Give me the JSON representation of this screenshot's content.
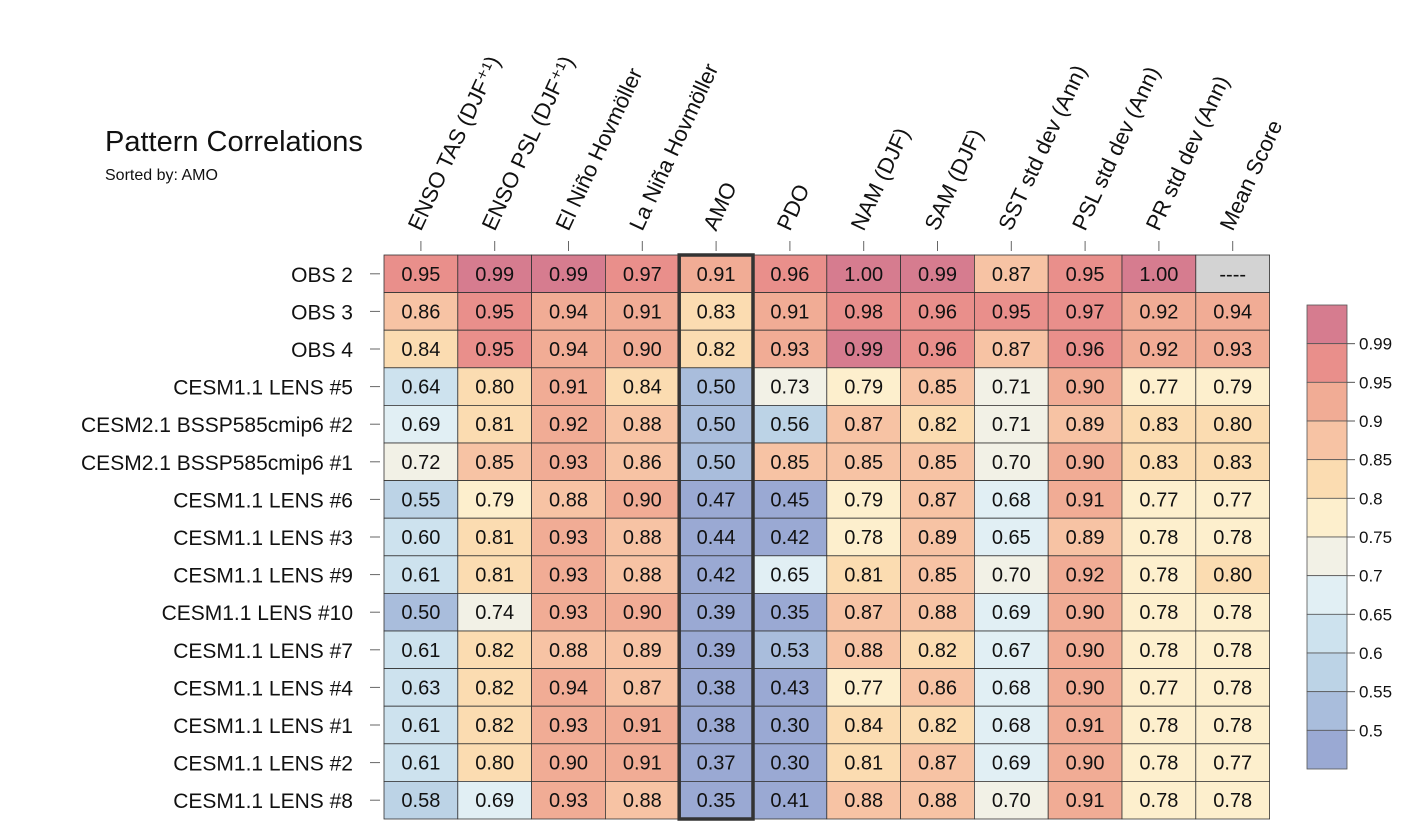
{
  "title": "Pattern Correlations",
  "subtitle": "Sorted by: AMO",
  "chart_data": {
    "type": "heatmap",
    "columns": [
      "ENSO TAS (DJF⁺¹)",
      "ENSO PSL (DJF⁺¹)",
      "El Niño Hovmöller",
      "La Niña Hovmöller",
      "AMO",
      "PDO",
      "NAM (DJF)",
      "SAM (DJF)",
      "SST std dev (Ann)",
      "PSL std dev (Ann)",
      "PR std dev (Ann)",
      "Mean Score"
    ],
    "highlighted_column": "AMO",
    "rows": [
      {
        "name": "OBS 2",
        "values": [
          "0.95",
          "0.99",
          "0.99",
          "0.97",
          "0.91",
          "0.96",
          "1.00",
          "0.99",
          "0.87",
          "0.95",
          "1.00",
          "----"
        ]
      },
      {
        "name": "OBS 3",
        "values": [
          "0.86",
          "0.95",
          "0.94",
          "0.91",
          "0.83",
          "0.91",
          "0.98",
          "0.96",
          "0.95",
          "0.97",
          "0.92",
          "0.94"
        ]
      },
      {
        "name": "OBS 4",
        "values": [
          "0.84",
          "0.95",
          "0.94",
          "0.90",
          "0.82",
          "0.93",
          "0.99",
          "0.96",
          "0.87",
          "0.96",
          "0.92",
          "0.93"
        ]
      },
      {
        "name": "CESM1.1 LENS #5",
        "values": [
          "0.64",
          "0.80",
          "0.91",
          "0.84",
          "0.50",
          "0.73",
          "0.79",
          "0.85",
          "0.71",
          "0.90",
          "0.77",
          "0.79"
        ]
      },
      {
        "name": "CESM2.1 BSSP585cmip6 #2",
        "values": [
          "0.69",
          "0.81",
          "0.92",
          "0.88",
          "0.50",
          "0.56",
          "0.87",
          "0.82",
          "0.71",
          "0.89",
          "0.83",
          "0.80"
        ]
      },
      {
        "name": "CESM2.1 BSSP585cmip6 #1",
        "values": [
          "0.72",
          "0.85",
          "0.93",
          "0.86",
          "0.50",
          "0.85",
          "0.85",
          "0.85",
          "0.70",
          "0.90",
          "0.83",
          "0.83"
        ]
      },
      {
        "name": "CESM1.1 LENS #6",
        "values": [
          "0.55",
          "0.79",
          "0.88",
          "0.90",
          "0.47",
          "0.45",
          "0.79",
          "0.87",
          "0.68",
          "0.91",
          "0.77",
          "0.77"
        ]
      },
      {
        "name": "CESM1.1 LENS #3",
        "values": [
          "0.60",
          "0.81",
          "0.93",
          "0.88",
          "0.44",
          "0.42",
          "0.78",
          "0.89",
          "0.65",
          "0.89",
          "0.78",
          "0.78"
        ]
      },
      {
        "name": "CESM1.1 LENS #9",
        "values": [
          "0.61",
          "0.81",
          "0.93",
          "0.88",
          "0.42",
          "0.65",
          "0.81",
          "0.85",
          "0.70",
          "0.92",
          "0.78",
          "0.80"
        ]
      },
      {
        "name": "CESM1.1 LENS #10",
        "values": [
          "0.50",
          "0.74",
          "0.93",
          "0.90",
          "0.39",
          "0.35",
          "0.87",
          "0.88",
          "0.69",
          "0.90",
          "0.78",
          "0.78"
        ]
      },
      {
        "name": "CESM1.1 LENS #7",
        "values": [
          "0.61",
          "0.82",
          "0.88",
          "0.89",
          "0.39",
          "0.53",
          "0.88",
          "0.82",
          "0.67",
          "0.90",
          "0.78",
          "0.78"
        ]
      },
      {
        "name": "CESM1.1 LENS #4",
        "values": [
          "0.63",
          "0.82",
          "0.94",
          "0.87",
          "0.38",
          "0.43",
          "0.77",
          "0.86",
          "0.68",
          "0.90",
          "0.77",
          "0.78"
        ]
      },
      {
        "name": "CESM1.1 LENS #1",
        "values": [
          "0.61",
          "0.82",
          "0.93",
          "0.91",
          "0.38",
          "0.30",
          "0.84",
          "0.82",
          "0.68",
          "0.91",
          "0.78",
          "0.78"
        ]
      },
      {
        "name": "CESM1.1 LENS #2",
        "values": [
          "0.61",
          "0.80",
          "0.90",
          "0.91",
          "0.37",
          "0.30",
          "0.81",
          "0.87",
          "0.69",
          "0.90",
          "0.78",
          "0.77"
        ]
      },
      {
        "name": "CESM1.1 LENS #8",
        "values": [
          "0.58",
          "0.69",
          "0.93",
          "0.88",
          "0.35",
          "0.41",
          "0.88",
          "0.88",
          "0.70",
          "0.91",
          "0.78",
          "0.78"
        ]
      }
    ],
    "colorbar": {
      "levels": [
        "0.5",
        "0.55",
        "0.6",
        "0.65",
        "0.7",
        "0.75",
        "0.8",
        "0.85",
        "0.9",
        "0.95",
        "0.99"
      ],
      "colors": [
        "#9aa9d3",
        "#a9bddc",
        "#bcd3e6",
        "#cde2ee",
        "#e1eff4",
        "#f2f1e6",
        "#fdefcd",
        "#fbdcb1",
        "#f7c3a4",
        "#f1ac95",
        "#e98f8b",
        "#d67c8f"
      ],
      "missing_color": "#d3d3d3"
    }
  }
}
